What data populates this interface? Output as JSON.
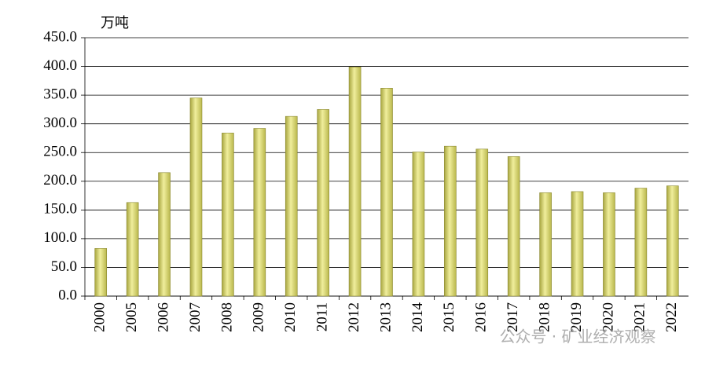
{
  "chart_data": {
    "type": "bar",
    "unit_label": "万吨",
    "categories": [
      "2000",
      "2005",
      "2006",
      "2007",
      "2008",
      "2009",
      "2010",
      "2011",
      "2012",
      "2013",
      "2014",
      "2015",
      "2016",
      "2017",
      "2018",
      "2019",
      "2020",
      "2021",
      "2022"
    ],
    "values": [
      83,
      163,
      215,
      345,
      284,
      292,
      313,
      325,
      399,
      362,
      251,
      261,
      256,
      243,
      180,
      182,
      180,
      188,
      192
    ],
    "color": "#d6d46e",
    "ylim": [
      0,
      450
    ],
    "yticks": [
      {
        "value": 0,
        "label": "0.0"
      },
      {
        "value": 50,
        "label": "50.0"
      },
      {
        "value": 100,
        "label": "100.0"
      },
      {
        "value": 150,
        "label": "150.0"
      },
      {
        "value": 200,
        "label": "200.0"
      },
      {
        "value": 250,
        "label": "250.0"
      },
      {
        "value": 300,
        "label": "300.0"
      },
      {
        "value": 350,
        "label": "350.0"
      },
      {
        "value": 400,
        "label": "400.0"
      },
      {
        "value": 450,
        "label": "450.0"
      }
    ],
    "grid": true,
    "watermark": "公众号 · 矿业经济观察"
  }
}
